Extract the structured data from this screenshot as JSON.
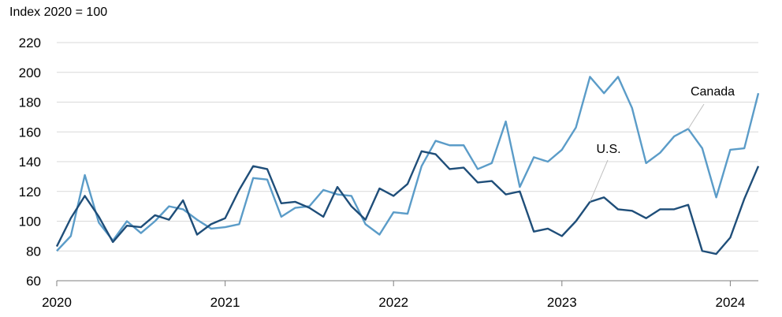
{
  "chart_data": {
    "type": "line",
    "unit_label": "Index 2020 = 100",
    "ylim": [
      60,
      220
    ],
    "yticks": [
      60,
      80,
      100,
      120,
      140,
      160,
      180,
      200,
      220
    ],
    "xlim": [
      0,
      50
    ],
    "xticks": [
      {
        "label": "2020",
        "x": 0
      },
      {
        "label": "2021",
        "x": 12
      },
      {
        "label": "2022",
        "x": 24
      },
      {
        "label": "2023",
        "x": 36
      },
      {
        "label": "2024",
        "x": 48
      }
    ],
    "grid": true,
    "x": [
      0,
      1,
      2,
      3,
      4,
      5,
      6,
      7,
      8,
      9,
      10,
      11,
      12,
      13,
      14,
      15,
      16,
      17,
      18,
      19,
      20,
      21,
      22,
      23,
      24,
      25,
      26,
      27,
      28,
      29,
      30,
      31,
      32,
      33,
      34,
      35,
      36,
      37,
      38,
      39,
      40,
      41,
      42,
      43,
      44,
      45,
      46,
      47,
      48,
      49,
      50
    ],
    "series": [
      {
        "name": "Canada",
        "color": "#5b9cc8",
        "values": [
          80,
          90,
          131,
          99,
          87,
          100,
          92,
          100,
          110,
          108,
          101,
          95,
          96,
          98,
          129,
          128,
          103,
          109,
          110,
          121,
          118,
          117,
          98,
          91,
          106,
          105,
          137,
          154,
          151,
          151,
          135,
          139,
          167,
          123,
          143,
          140,
          148,
          163,
          197,
          186,
          197,
          176,
          139,
          146,
          157,
          162,
          149,
          116,
          148,
          149,
          186
        ]
      },
      {
        "name": "U.S.",
        "color": "#1f4e79",
        "values": [
          83,
          102,
          117,
          103,
          86,
          97,
          96,
          104,
          101,
          114,
          91,
          98,
          102,
          121,
          137,
          135,
          112,
          113,
          109,
          103,
          123,
          110,
          101,
          122,
          117,
          125,
          147,
          145,
          135,
          136,
          126,
          127,
          118,
          120,
          93,
          95,
          90,
          100,
          113,
          116,
          108,
          107,
          102,
          108,
          108,
          111,
          80,
          78,
          89,
          115,
          137
        ]
      }
    ],
    "annotations": [
      {
        "series": "Canada",
        "text": "Canada"
      },
      {
        "series": "U.S.",
        "text": "U.S."
      }
    ]
  }
}
